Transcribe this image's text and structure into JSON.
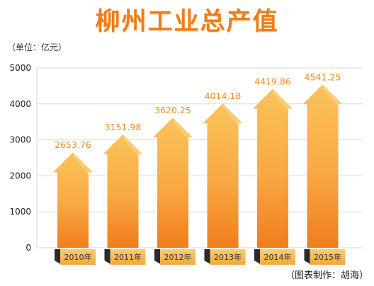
{
  "page": {
    "title": "柳州工业总产值",
    "unit": "（单位：亿元）",
    "credit": "（图表制作：胡海）"
  },
  "colors": {
    "title": "#ee7d1a",
    "value_label": "#f08a1c",
    "arrow_top": "#fbc35a",
    "arrow_bottom": "#f07d1a",
    "grid": "#d9d9d9",
    "year_tag": "#f6c15d",
    "year_tag_dark": "#2b2b2b"
  },
  "chart_data": {
    "type": "bar",
    "categories": [
      "2010年",
      "2011年",
      "2012年",
      "2013年",
      "2014年",
      "2015年"
    ],
    "values": [
      2653.76,
      3151.98,
      3620.25,
      4014.18,
      4419.86,
      4541.25
    ],
    "value_labels": [
      "2653.76",
      "3151.98",
      "3620.25",
      "4014.18",
      "4419.86",
      "4541.25"
    ],
    "yticks": [
      "0",
      "1000",
      "2000",
      "3000",
      "4000",
      "5000"
    ],
    "ylim": [
      0,
      5000
    ],
    "title": "柳州工业总产值",
    "ylabel": "单位：亿元",
    "xlabel": "",
    "grid": true,
    "legend": "none"
  }
}
